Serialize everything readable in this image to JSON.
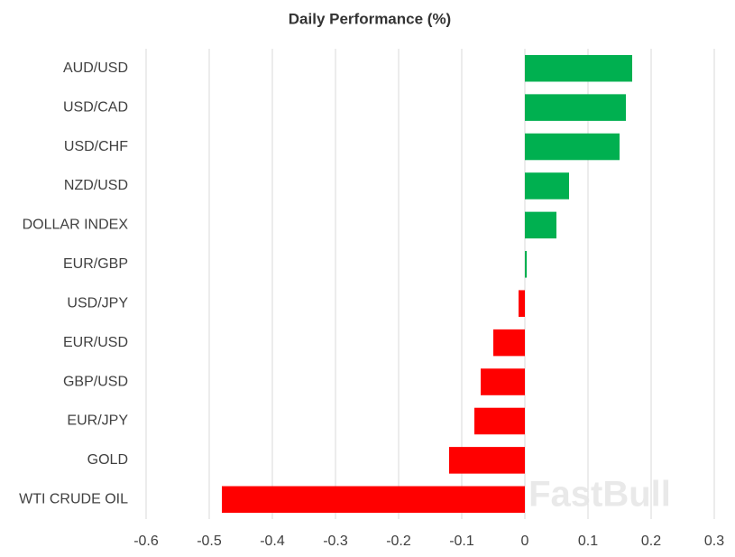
{
  "chart_data": {
    "type": "bar",
    "orientation": "horizontal",
    "title": "Daily Performance (%)",
    "categories": [
      "AUD/USD",
      "USD/CAD",
      "USD/CHF",
      "NZD/USD",
      "DOLLAR INDEX",
      "EUR/GBP",
      "USD/JPY",
      "EUR/USD",
      "GBP/USD",
      "EUR/JPY",
      "GOLD",
      "WTI CRUDE OIL"
    ],
    "values": [
      0.17,
      0.16,
      0.15,
      0.07,
      0.05,
      0.003,
      -0.01,
      -0.05,
      -0.07,
      -0.08,
      -0.12,
      -0.48
    ],
    "positive_color": "#00b050",
    "negative_color": "#ff0000",
    "xlim": [
      -0.6,
      0.3
    ],
    "xticks": [
      -0.6,
      -0.5,
      -0.4,
      -0.3,
      -0.2,
      -0.1,
      0,
      0.1,
      0.2,
      0.3
    ],
    "grid": true,
    "watermark": "FastBull"
  }
}
